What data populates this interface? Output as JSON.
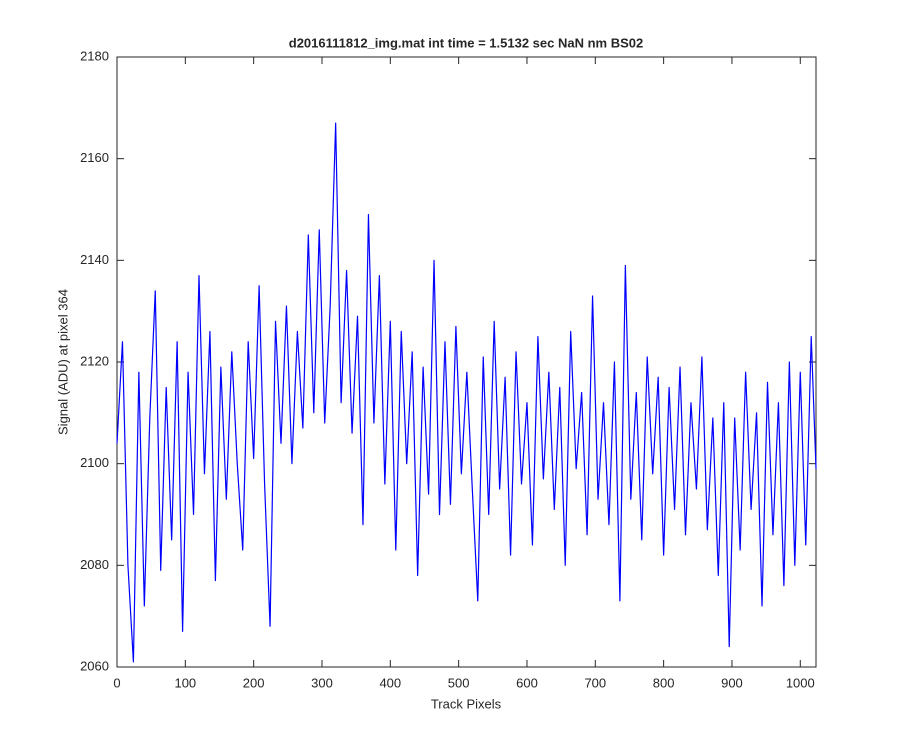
{
  "chart_data": {
    "type": "line",
    "title": "d2016111812_img.mat int time = 1.5132 sec  NaN nm BS02",
    "x_label": "Track Pixels",
    "y_label": "Signal (ADU) at pixel 364",
    "xlim": [
      0,
      1023
    ],
    "xticks": [
      0,
      100,
      200,
      300,
      400,
      500,
      600,
      700,
      800,
      900,
      1000
    ],
    "ylim": [
      2060,
      2180
    ],
    "yticks": [
      2060,
      2080,
      2100,
      2120,
      2140,
      2160,
      2180
    ],
    "grid": false,
    "x": [
      0,
      8,
      16,
      24,
      32,
      40,
      48,
      56,
      64,
      72,
      80,
      88,
      96,
      104,
      112,
      120,
      128,
      136,
      144,
      152,
      160,
      168,
      176,
      184,
      192,
      200,
      208,
      216,
      224,
      232,
      240,
      248,
      256,
      264,
      272,
      280,
      288,
      296,
      304,
      312,
      320,
      328,
      336,
      344,
      352,
      360,
      368,
      376,
      384,
      392,
      400,
      408,
      416,
      424,
      432,
      440,
      448,
      456,
      464,
      472,
      480,
      488,
      496,
      504,
      512,
      520,
      528,
      536,
      544,
      552,
      560,
      568,
      576,
      584,
      592,
      600,
      608,
      616,
      624,
      632,
      640,
      648,
      656,
      664,
      672,
      680,
      688,
      696,
      704,
      712,
      720,
      728,
      736,
      744,
      752,
      760,
      768,
      776,
      784,
      792,
      800,
      808,
      816,
      824,
      832,
      840,
      848,
      856,
      864,
      872,
      880,
      888,
      896,
      904,
      912,
      920,
      928,
      936,
      944,
      952,
      960,
      968,
      976,
      984,
      992,
      1000,
      1008,
      1016,
      1023
    ],
    "series": [
      {
        "color": "#0000ff",
        "values": [
          2104,
          2124,
          2080,
          2061,
          2118,
          2072,
          2109,
          2134,
          2079,
          2115,
          2085,
          2124,
          2067,
          2118,
          2090,
          2137,
          2098,
          2126,
          2077,
          2119,
          2093,
          2122,
          2100,
          2083,
          2124,
          2101,
          2135,
          2096,
          2068,
          2128,
          2104,
          2131,
          2100,
          2126,
          2107,
          2145,
          2110,
          2146,
          2108,
          2131,
          2167,
          2112,
          2138,
          2106,
          2129,
          2088,
          2149,
          2108,
          2137,
          2096,
          2128,
          2083,
          2126,
          2100,
          2122,
          2078,
          2119,
          2094,
          2140,
          2090,
          2124,
          2092,
          2127,
          2098,
          2118,
          2095,
          2073,
          2121,
          2090,
          2128,
          2095,
          2117,
          2082,
          2122,
          2096,
          2112,
          2084,
          2125,
          2097,
          2118,
          2091,
          2115,
          2080,
          2126,
          2099,
          2114,
          2086,
          2133,
          2093,
          2112,
          2088,
          2120,
          2073,
          2139,
          2093,
          2114,
          2085,
          2121,
          2098,
          2117,
          2082,
          2115,
          2091,
          2119,
          2086,
          2112,
          2095,
          2121,
          2087,
          2109,
          2078,
          2112,
          2064,
          2109,
          2083,
          2118,
          2091,
          2110,
          2072,
          2116,
          2086,
          2112,
          2076,
          2120,
          2080,
          2118,
          2084,
          2125,
          2099
        ]
      }
    ]
  }
}
